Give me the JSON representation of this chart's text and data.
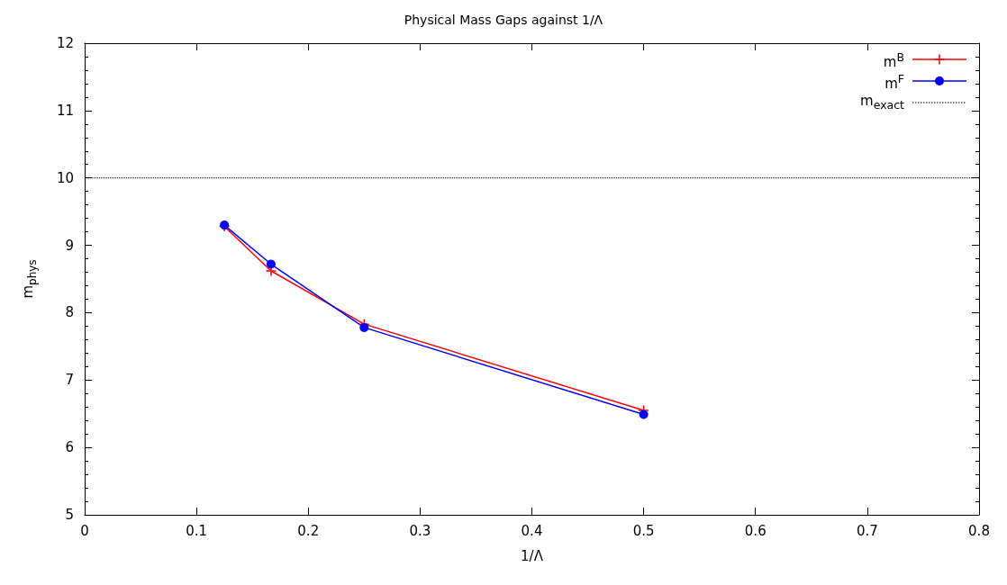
{
  "chart_data": {
    "type": "line",
    "title": "Physical Mass Gaps against 1/Λ",
    "xlabel": "1/Λ",
    "ylabel": "m$_{phys}$",
    "x": [
      0.125,
      0.1667,
      0.25,
      0.5
    ],
    "series": [
      {
        "name": "m$^{B}$",
        "color": "#ff0000",
        "marker": "cross",
        "values": [
          9.28,
          8.62,
          7.83,
          6.55
        ]
      },
      {
        "name": "m$^{F}$",
        "color": "#0000ff",
        "marker": "circle",
        "values": [
          9.3,
          8.72,
          7.78,
          6.49
        ]
      }
    ],
    "ref_lines": [
      {
        "axis": "y",
        "value": 10,
        "label": "m$_{exact}$",
        "color": "#000000",
        "line_style": "dotted"
      }
    ],
    "xlim": [
      0,
      0.8
    ],
    "xticks": [
      0,
      0.1,
      0.2,
      0.3,
      0.4,
      0.5,
      0.6,
      0.7,
      0.8
    ],
    "ylim": [
      5,
      12
    ],
    "yticks": [
      5,
      6,
      7,
      8,
      9,
      10,
      11,
      12
    ],
    "grid": false,
    "legend": "top right",
    "line_style": "solid"
  }
}
